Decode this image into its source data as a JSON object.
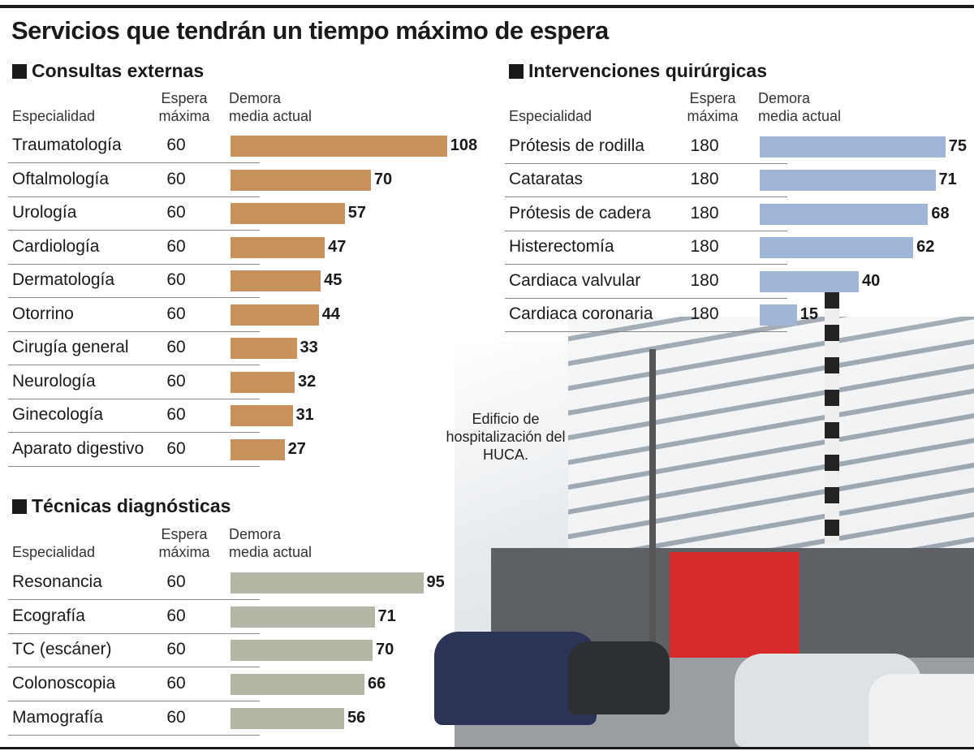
{
  "title": "Servicios que tendrán un tiempo máximo de espera",
  "annotation": "Edificio de hospitalización del HUCA.",
  "chart_data": [
    {
      "type": "bar",
      "title": "Consultas externas",
      "columns": [
        "Especialidad",
        "Espera máxima",
        "Demora media actual"
      ],
      "categories": [
        "Traumatología",
        "Oftalmología",
        "Urología",
        "Cardiología",
        "Dermatología",
        "Otorrino",
        "Cirugía general",
        "Neurología",
        "Ginecología",
        "Aparato digestivo"
      ],
      "max_wait": [
        60,
        60,
        60,
        60,
        60,
        60,
        60,
        60,
        60,
        60
      ],
      "values": [
        108,
        70,
        57,
        47,
        45,
        44,
        33,
        32,
        31,
        27
      ],
      "color": "#c8915e"
    },
    {
      "type": "bar",
      "title": "Intervenciones quirúrgicas",
      "columns": [
        "Especialidad",
        "Espera máxima",
        "Demora media actual"
      ],
      "categories": [
        "Prótesis de rodilla",
        "Cataratas",
        "Prótesis de cadera",
        "Histerectomía",
        "Cardiaca valvular",
        "Cardiaca coronaria"
      ],
      "max_wait": [
        180,
        180,
        180,
        180,
        180,
        180
      ],
      "values": [
        75,
        71,
        68,
        62,
        40,
        15
      ],
      "color": "#9fb6d6"
    },
    {
      "type": "bar",
      "title": "Técnicas diagnósticas",
      "columns": [
        "Especialidad",
        "Espera máxima",
        "Demora media actual"
      ],
      "categories": [
        "Resonancia",
        "Ecografía",
        "TC (escáner)",
        "Colonoscopia",
        "Mamografía"
      ],
      "max_wait": [
        60,
        60,
        60,
        60,
        60
      ],
      "values": [
        95,
        71,
        70,
        66,
        56
      ],
      "color": "#b5b7a6"
    }
  ]
}
